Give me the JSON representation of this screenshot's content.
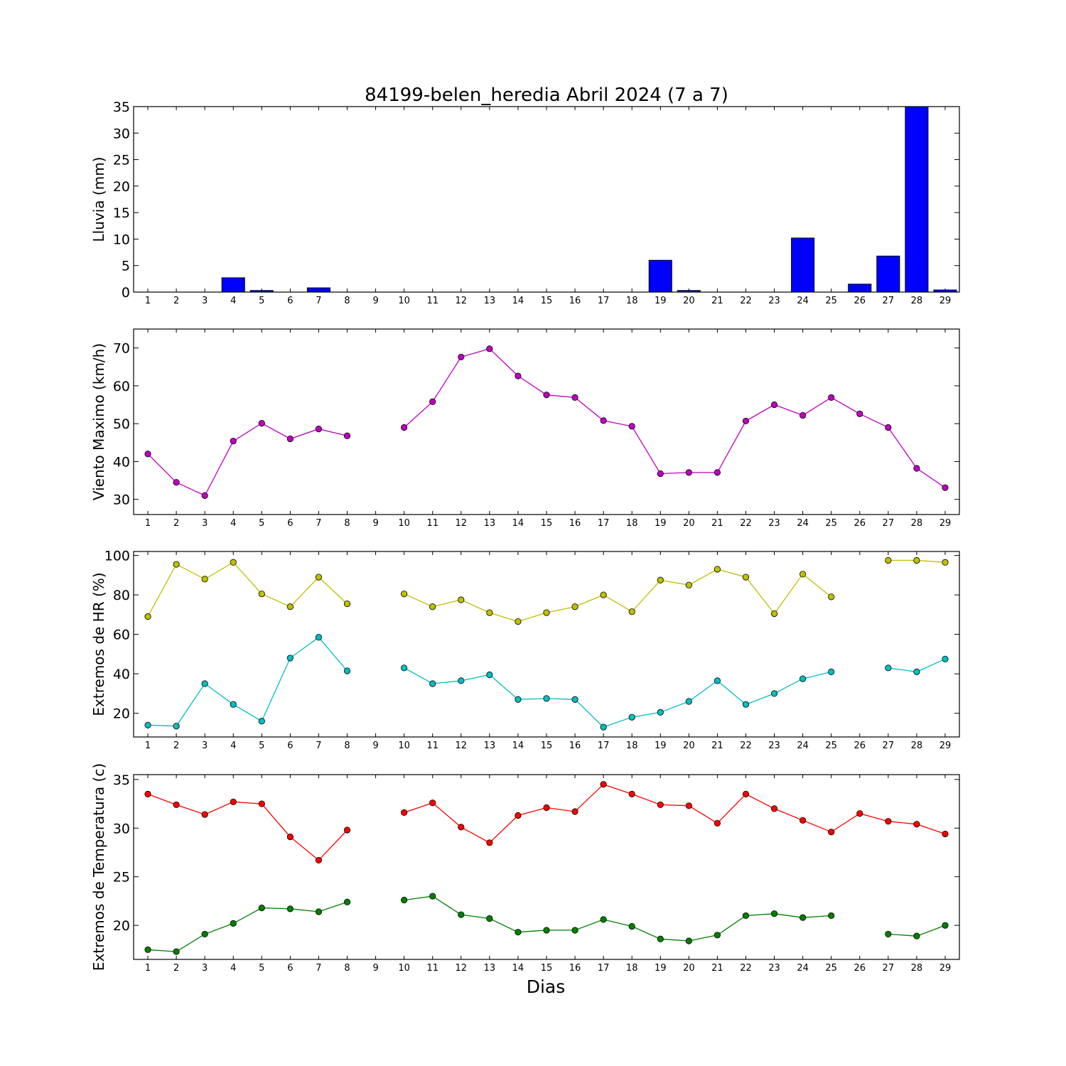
{
  "title": "84199-belen_heredia Abril 2024  (7 a 7)",
  "xlabel": "Dias",
  "colors": {
    "rain": "#0000ff",
    "wind": "#bf00bf",
    "hr_max": "#bfbf00",
    "hr_min": "#00bfbf",
    "temp_max": "#ff0000",
    "temp_min": "#008000"
  },
  "chart_data": [
    {
      "type": "bar",
      "ylabel": "Lluvia (mm)",
      "ylim": [
        0,
        35
      ],
      "yticks": [
        0,
        5,
        10,
        15,
        20,
        25,
        30,
        35
      ],
      "categories": [
        1,
        2,
        3,
        4,
        5,
        6,
        7,
        8,
        9,
        10,
        11,
        12,
        13,
        14,
        15,
        16,
        17,
        18,
        19,
        20,
        21,
        22,
        23,
        24,
        25,
        26,
        27,
        28,
        29
      ],
      "series": [
        {
          "values": [
            0,
            0,
            0,
            2.7,
            0.3,
            0,
            0.8,
            0,
            0,
            0,
            0,
            0,
            0,
            0,
            0,
            0,
            0,
            0,
            6.0,
            0.3,
            0,
            0,
            0,
            10.2,
            0,
            1.5,
            6.8,
            35.0,
            0.4
          ]
        }
      ]
    },
    {
      "type": "line",
      "ylabel": "Viento Maximo (km/h)",
      "ylim": [
        26,
        75
      ],
      "yticks": [
        30,
        40,
        50,
        60,
        70
      ],
      "categories": [
        1,
        2,
        3,
        4,
        5,
        6,
        7,
        8,
        9,
        10,
        11,
        12,
        13,
        14,
        15,
        16,
        17,
        18,
        19,
        20,
        21,
        22,
        23,
        24,
        25,
        26,
        27,
        28,
        29
      ],
      "series": [
        {
          "values": [
            42.0,
            34.5,
            31.0,
            45.4,
            50.1,
            46.0,
            48.6,
            46.8,
            null,
            49.0,
            55.8,
            67.6,
            69.8,
            62.6,
            57.6,
            56.9,
            50.8,
            49.3,
            36.8,
            37.1,
            37.1,
            50.7,
            55.0,
            52.2,
            56.9,
            52.6,
            49.0,
            38.2,
            33.1
          ]
        }
      ]
    },
    {
      "type": "line",
      "ylabel": "Extremos de HR (%)",
      "ylim": [
        8,
        102
      ],
      "yticks": [
        20,
        40,
        60,
        80,
        100
      ],
      "categories": [
        1,
        2,
        3,
        4,
        5,
        6,
        7,
        8,
        9,
        10,
        11,
        12,
        13,
        14,
        15,
        16,
        17,
        18,
        19,
        20,
        21,
        22,
        23,
        24,
        25,
        26,
        27,
        28,
        29
      ],
      "series": [
        {
          "values": [
            69,
            95.5,
            88,
            96.5,
            80.5,
            74,
            89,
            75.5,
            null,
            80.5,
            74,
            77.5,
            71,
            66.5,
            71,
            74,
            80,
            71.5,
            87.5,
            85,
            93,
            89,
            70.5,
            90.5,
            79,
            null,
            97.5,
            97.5,
            96.5
          ]
        },
        {
          "values": [
            14,
            13.5,
            35,
            24.5,
            16,
            48,
            58.5,
            41.5,
            null,
            43,
            35,
            36.5,
            39.5,
            27,
            27.5,
            27,
            13,
            18,
            20.5,
            26,
            36.5,
            24.5,
            30,
            37.5,
            41,
            null,
            43,
            41,
            47.5
          ]
        }
      ]
    },
    {
      "type": "line",
      "ylabel": "Extremos de Temperatura (c)",
      "ylim": [
        16.5,
        35.5
      ],
      "yticks": [
        20,
        25,
        30,
        35
      ],
      "categories": [
        1,
        2,
        3,
        4,
        5,
        6,
        7,
        8,
        9,
        10,
        11,
        12,
        13,
        14,
        15,
        16,
        17,
        18,
        19,
        20,
        21,
        22,
        23,
        24,
        25,
        26,
        27,
        28,
        29
      ],
      "series": [
        {
          "values": [
            33.5,
            32.4,
            31.4,
            32.7,
            32.5,
            29.1,
            26.7,
            29.8,
            null,
            31.6,
            32.6,
            30.1,
            28.5,
            31.3,
            32.1,
            31.7,
            34.5,
            33.5,
            32.4,
            32.3,
            30.5,
            33.5,
            32.0,
            30.8,
            29.6,
            31.5,
            30.7,
            30.4,
            29.4
          ]
        },
        {
          "values": [
            17.5,
            17.3,
            19.1,
            20.2,
            21.8,
            21.7,
            21.4,
            22.4,
            null,
            22.6,
            23.0,
            21.1,
            20.7,
            19.3,
            19.5,
            19.5,
            20.6,
            19.9,
            18.6,
            18.4,
            19.0,
            21.0,
            21.2,
            20.8,
            21.0,
            null,
            19.1,
            18.9,
            20.0
          ]
        }
      ]
    }
  ]
}
